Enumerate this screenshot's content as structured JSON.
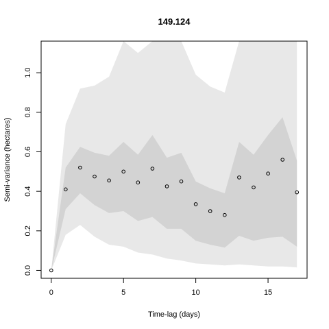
{
  "chart_data": {
    "type": "scatter",
    "title": "149.124",
    "xlabel": "Time-lag (days)",
    "ylabel": "Semi-variance (hectares)",
    "xlim": [
      -0.7,
      17.7
    ],
    "ylim": [
      -0.04,
      1.16
    ],
    "x_ticks": [
      0,
      5,
      10,
      15
    ],
    "y_ticks": [
      0.0,
      0.2,
      0.4,
      0.6,
      0.8,
      1.0
    ],
    "x_tick_labels": [
      "0",
      "5",
      "10",
      "15"
    ],
    "y_tick_labels": [
      "0.0",
      "0.2",
      "0.4",
      "0.6",
      "0.8",
      "1.0"
    ],
    "grid": false,
    "legend": "none",
    "colors": {
      "outer_envelope": "#e8e8e8",
      "inner_envelope": "#d3d3d3",
      "points": "#000000"
    },
    "x": [
      0,
      1,
      2,
      3,
      4,
      5,
      6,
      7,
      8,
      9,
      10,
      11,
      12,
      13,
      14,
      15,
      16,
      17
    ],
    "series": [
      {
        "values": [
          0.0,
          0.41,
          0.52,
          0.475,
          0.455,
          0.5,
          0.445,
          0.515,
          0.425,
          0.45,
          0.335,
          0.3,
          0.28,
          0.47,
          0.42,
          0.49,
          0.56,
          0.395
        ]
      }
    ],
    "envelopes": {
      "outer": {
        "lower": [
          0.0,
          0.18,
          0.23,
          0.17,
          0.13,
          0.12,
          0.09,
          0.08,
          0.06,
          0.05,
          0.035,
          0.03,
          0.025,
          0.03,
          0.025,
          0.02,
          0.02,
          0.015
        ],
        "upper": [
          0.0,
          0.74,
          0.92,
          0.935,
          0.98,
          1.16,
          1.1,
          1.16,
          1.16,
          1.16,
          0.99,
          0.93,
          0.9,
          1.16,
          1.16,
          1.16,
          1.16,
          1.16
        ]
      },
      "inner": {
        "lower": [
          0.0,
          0.31,
          0.39,
          0.33,
          0.29,
          0.3,
          0.25,
          0.27,
          0.21,
          0.21,
          0.15,
          0.13,
          0.115,
          0.175,
          0.15,
          0.165,
          0.17,
          0.12
        ],
        "upper": [
          0.0,
          0.52,
          0.625,
          0.595,
          0.58,
          0.65,
          0.585,
          0.685,
          0.57,
          0.595,
          0.45,
          0.415,
          0.39,
          0.65,
          0.585,
          0.685,
          0.775,
          0.555
        ]
      }
    }
  }
}
